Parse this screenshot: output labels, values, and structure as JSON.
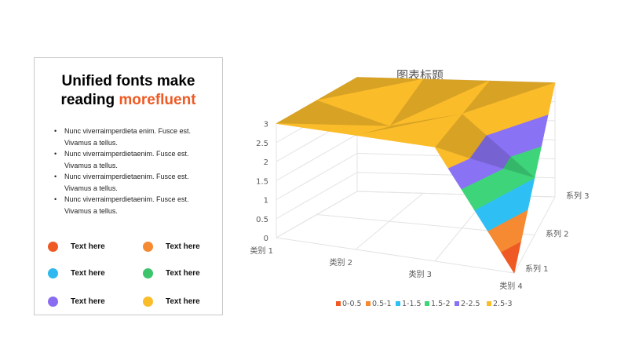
{
  "card": {
    "headline_line1": "Unified fonts make",
    "headline_prefix": "reading ",
    "headline_accent": "morefluent",
    "bullets": [
      "Nunc viverraimperdieta enim. Fusce est. Vivamus a tellus.",
      "Nunc viverraimperdietaenim. Fusce est. Vivamus a tellus.",
      "Nunc viverraimperdietaenim. Fusce est. Vivamus a tellus.",
      "Nunc viverraimperdietaenim. Fusce est. Vivamus a tellus."
    ],
    "legend": [
      {
        "label": "Text here",
        "color": "#ef5a24"
      },
      {
        "label": "Text here",
        "color": "#f58a32"
      },
      {
        "label": "Text here",
        "color": "#2db8f0"
      },
      {
        "label": "Text here",
        "color": "#3ec46d"
      },
      {
        "label": "Text here",
        "color": "#8a6cf2"
      },
      {
        "label": "Text here",
        "color": "#fbbc2a"
      }
    ]
  },
  "chart_data": {
    "type": "surface",
    "title": "图表标题",
    "categories": [
      "类别 1",
      "类别 2",
      "类别 3",
      "类别 4"
    ],
    "series": [
      {
        "name": "系列 1",
        "values": [
          3.0,
          3.0,
          3.0,
          0.0
        ]
      },
      {
        "name": "系列 2",
        "values": [
          3.0,
          2.5,
          3.0,
          1.5
        ]
      },
      {
        "name": "系列 3",
        "values": [
          3.0,
          3.0,
          3.0,
          3.0
        ]
      }
    ],
    "z_ticks": [
      "0",
      "0.5",
      "1",
      "1.5",
      "2",
      "2.5",
      "3"
    ],
    "zlim": [
      0,
      3
    ],
    "bands": [
      {
        "label": "0-0.5",
        "from": 0,
        "to": 0.5,
        "color": "#ef5a24"
      },
      {
        "label": "0.5-1",
        "from": 0.5,
        "to": 1,
        "color": "#f58a32"
      },
      {
        "label": "1-1.5",
        "from": 1,
        "to": 1.5,
        "color": "#2ec0f5"
      },
      {
        "label": "1.5-2",
        "from": 1.5,
        "to": 2,
        "color": "#3ed57a"
      },
      {
        "label": "2-2.5",
        "from": 2,
        "to": 2.5,
        "color": "#8a72f4"
      },
      {
        "label": "2.5-3",
        "from": 2.5,
        "to": 3,
        "color": "#fbbc2a"
      }
    ],
    "legend_position": "bottom",
    "grid": true
  }
}
